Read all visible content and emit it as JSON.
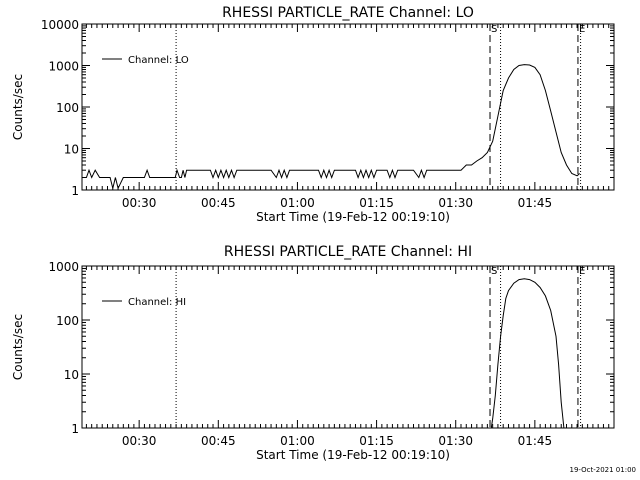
{
  "footer": {
    "generated": "19-Oct-2021 01:00"
  },
  "chart_data": [
    {
      "type": "line",
      "title": "RHESSI PARTICLE_RATE Channel: LO",
      "xlabel": "Start Time (19-Feb-12 00:19:10)",
      "ylabel": "Counts/sec",
      "y_scale": "log",
      "ylim": [
        1,
        10000
      ],
      "y_ticks": [
        1,
        10,
        100,
        1000,
        10000
      ],
      "y_tick_labels": [
        "1",
        "10",
        "100",
        "1000",
        "10000"
      ],
      "xlim": [
        "00:19:10",
        "02:00:00"
      ],
      "x_ticks": [
        "00:30",
        "00:45",
        "01:00",
        "01:15",
        "01:30",
        "01:45"
      ],
      "legend": {
        "label": "Channel: LO",
        "position": "top-left"
      },
      "markers": [
        {
          "time": "00:37:00",
          "style": "dotted",
          "label": ""
        },
        {
          "time": "01:36:30",
          "style": "dashed",
          "label": "S"
        },
        {
          "time": "01:38:30",
          "style": "dotted",
          "label": ""
        },
        {
          "time": "01:53:10",
          "style": "dashed",
          "label": "E"
        },
        {
          "time": "01:53:40",
          "style": "dotted",
          "label": ""
        }
      ],
      "series": [
        {
          "x": [
            "00:19:10",
            "00:20:00",
            "00:20:30",
            "00:21:00",
            "00:21:40",
            "00:22:30",
            "00:23:00",
            "00:24:00",
            "00:24:30",
            "00:25:00",
            "00:25:30",
            "00:26:00",
            "00:27:00",
            "00:30:00",
            "00:31:00",
            "00:31:30",
            "00:32:00",
            "00:36:50",
            "00:37:10",
            "00:37:40",
            "00:38:00",
            "00:38:20",
            "00:38:40",
            "00:39:00",
            "00:39:30",
            "00:41:00",
            "00:43:00",
            "00:43:30",
            "00:44:00",
            "00:44:30",
            "00:45:00",
            "00:45:30",
            "00:46:00",
            "00:46:30",
            "00:47:00",
            "00:47:30",
            "00:48:00",
            "00:48:30",
            "00:49:00",
            "00:50:00",
            "00:55:00",
            "00:56:00",
            "00:56:30",
            "00:57:00",
            "00:57:30",
            "00:58:00",
            "00:58:30",
            "00:59:00",
            "01:04:00",
            "01:04:30",
            "01:05:00",
            "01:05:30",
            "01:06:00",
            "01:06:30",
            "01:07:00",
            "01:10:00",
            "01:11:00",
            "01:11:30",
            "01:12:00",
            "01:12:30",
            "01:13:00",
            "01:13:30",
            "01:14:00",
            "01:14:30",
            "01:15:00",
            "01:16:00",
            "01:17:00",
            "01:17:30",
            "01:18:00",
            "01:18:30",
            "01:19:00",
            "01:22:00",
            "01:23:00",
            "01:23:30",
            "01:24:00",
            "01:24:30",
            "01:25:00",
            "01:29:00",
            "01:31:00",
            "01:32:00",
            "01:33:00",
            "01:34:00",
            "01:35:00",
            "01:36:00",
            "01:37:00",
            "01:38:00",
            "01:39:00",
            "01:40:00",
            "01:41:00",
            "01:42:00",
            "01:43:00",
            "01:44:00",
            "01:45:00",
            "01:46:00",
            "01:47:00",
            "01:48:00",
            "01:49:00",
            "01:50:00",
            "01:51:00",
            "01:52:00",
            "01:53:00",
            "01:53:30"
          ],
          "y": [
            2,
            2,
            3,
            2,
            3,
            2,
            2,
            2,
            2,
            1.1,
            2,
            1.1,
            2,
            2,
            2,
            3,
            2,
            2,
            3,
            2,
            2,
            3,
            2,
            3,
            3,
            3,
            3,
            3,
            2,
            3,
            2,
            3,
            2,
            3,
            2,
            3,
            2,
            3,
            3,
            3,
            3,
            2,
            3,
            2,
            3,
            2,
            3,
            3,
            3,
            2,
            3,
            2,
            3,
            2,
            3,
            3,
            3,
            2,
            3,
            2,
            3,
            2,
            3,
            2,
            3,
            3,
            3,
            2,
            3,
            2,
            3,
            3,
            2,
            3,
            2,
            3,
            3,
            3,
            3,
            4,
            4,
            5,
            6,
            8,
            15,
            60,
            250,
            500,
            800,
            1000,
            1050,
            1030,
            900,
            600,
            250,
            80,
            25,
            8,
            4,
            2.5,
            2.2,
            2.5
          ]
        }
      ]
    },
    {
      "type": "line",
      "title": "RHESSI PARTICLE_RATE Channel: HI",
      "xlabel": "Start Time (19-Feb-12 00:19:10)",
      "ylabel": "Counts/sec",
      "y_scale": "log",
      "ylim": [
        1,
        1000
      ],
      "y_ticks": [
        1,
        10,
        100,
        1000
      ],
      "y_tick_labels": [
        "1",
        "10",
        "100",
        "1000"
      ],
      "xlim": [
        "00:19:10",
        "02:00:00"
      ],
      "x_ticks": [
        "00:30",
        "00:45",
        "01:00",
        "01:15",
        "01:30",
        "01:45"
      ],
      "legend": {
        "label": "Channel: HI",
        "position": "top-left"
      },
      "markers": [
        {
          "time": "00:37:00",
          "style": "dotted",
          "label": ""
        },
        {
          "time": "01:36:30",
          "style": "dashed",
          "label": "S"
        },
        {
          "time": "01:38:30",
          "style": "dotted",
          "label": ""
        },
        {
          "time": "01:53:10",
          "style": "dashed",
          "label": "E"
        },
        {
          "time": "01:53:40",
          "style": "dotted",
          "label": ""
        }
      ],
      "series": [
        {
          "x": [
            "01:36:45",
            "01:37:00",
            "01:37:30",
            "01:38:00",
            "01:38:30",
            "01:39:00",
            "01:39:30",
            "01:40:00",
            "01:41:00",
            "01:42:00",
            "01:43:00",
            "01:44:00",
            "01:45:00",
            "01:46:00",
            "01:47:00",
            "01:48:00",
            "01:49:00",
            "01:49:30",
            "01:50:00",
            "01:50:30"
          ],
          "y": [
            1,
            1.5,
            4,
            15,
            50,
            120,
            250,
            350,
            480,
            560,
            580,
            560,
            500,
            400,
            280,
            150,
            50,
            15,
            3,
            1
          ]
        }
      ]
    }
  ]
}
